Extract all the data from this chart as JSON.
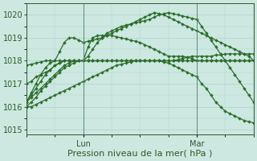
{
  "xlabel": "Pression niveau de la mer( hPa )",
  "bg_color": "#cce8e0",
  "grid_color": "#b0d0d0",
  "line_color": "#2d6e2d",
  "ylim": [
    1014.8,
    1020.5
  ],
  "yticks": [
    1015,
    1016,
    1017,
    1018,
    1019,
    1020
  ],
  "xlim": [
    0,
    48
  ],
  "xtick_positions": [
    12,
    36
  ],
  "xtick_labels": [
    "Lun",
    "Mar"
  ],
  "vlines": [
    12,
    36
  ],
  "marker_size": 2.0,
  "line_width": 0.9,
  "font_size_label": 8,
  "font_size_tick": 7,
  "series": [
    {
      "x": [
        0,
        1,
        2,
        3,
        4,
        5,
        6,
        7,
        8,
        9,
        10,
        11,
        12,
        13,
        14,
        15,
        16,
        17,
        18,
        19,
        20,
        21,
        22,
        23,
        24,
        25,
        26,
        27,
        28,
        29,
        30,
        31,
        32,
        33,
        34,
        35,
        36,
        37,
        38,
        39,
        40,
        41,
        42,
        43,
        44,
        45,
        46,
        47,
        48
      ],
      "y": [
        1016.2,
        1016.5,
        1016.8,
        1017.1,
        1017.4,
        1017.6,
        1017.8,
        1017.9,
        1018.0,
        1018.0,
        1018.0,
        1018.0,
        1018.0,
        1018.0,
        1018.0,
        1018.0,
        1018.0,
        1018.0,
        1018.0,
        1018.0,
        1018.0,
        1018.0,
        1018.0,
        1018.0,
        1018.0,
        1018.0,
        1018.0,
        1018.0,
        1018.0,
        1018.0,
        1018.0,
        1018.0,
        1018.0,
        1018.0,
        1018.0,
        1018.0,
        1018.0,
        1018.0,
        1018.0,
        1018.0,
        1018.0,
        1018.0,
        1018.0,
        1018.0,
        1018.0,
        1018.0,
        1018.0,
        1018.0,
        1018.0
      ]
    },
    {
      "x": [
        0,
        1,
        2,
        3,
        4,
        5,
        6,
        7,
        8,
        9,
        10,
        11,
        12,
        13,
        14,
        15,
        16,
        17,
        18,
        19,
        20,
        21,
        22,
        23,
        24,
        25,
        26,
        27,
        28,
        29,
        30,
        31,
        32,
        33,
        34,
        35,
        36,
        37,
        38,
        39,
        40,
        41,
        42,
        43,
        44,
        45,
        46,
        47,
        48
      ],
      "y": [
        1017.0,
        1017.1,
        1017.3,
        1017.4,
        1017.5,
        1017.6,
        1017.8,
        1017.9,
        1018.0,
        1018.0,
        1018.0,
        1018.0,
        1018.0,
        1018.0,
        1018.0,
        1018.0,
        1018.0,
        1018.0,
        1018.0,
        1018.0,
        1018.0,
        1018.0,
        1018.0,
        1018.0,
        1018.0,
        1018.0,
        1018.0,
        1018.0,
        1018.0,
        1018.0,
        1018.0,
        1018.0,
        1018.05,
        1018.1,
        1018.15,
        1018.2,
        1018.2,
        1018.2,
        1018.2,
        1018.2,
        1018.25,
        1018.25,
        1018.3,
        1018.3,
        1018.3,
        1018.3,
        1018.3,
        1018.3,
        1018.3
      ]
    },
    {
      "x": [
        0,
        1,
        2,
        3,
        4,
        5,
        6,
        7,
        8,
        9,
        10,
        11,
        12,
        13,
        14,
        15,
        16,
        17,
        18,
        19,
        20,
        21,
        22,
        23,
        24,
        25,
        26,
        27,
        28,
        29,
        30,
        31,
        32,
        33,
        34,
        35,
        36,
        37,
        38,
        39,
        40,
        41,
        42,
        43,
        44,
        45,
        46,
        47,
        48
      ],
      "y": [
        1017.8,
        1017.85,
        1017.9,
        1017.95,
        1018.0,
        1018.0,
        1018.0,
        1018.0,
        1018.0,
        1018.0,
        1018.0,
        1018.0,
        1018.0,
        1018.0,
        1018.0,
        1018.0,
        1018.0,
        1018.0,
        1018.0,
        1018.0,
        1018.0,
        1018.0,
        1018.0,
        1018.0,
        1018.0,
        1018.0,
        1018.0,
        1018.0,
        1018.0,
        1018.0,
        1018.0,
        1018.0,
        1018.0,
        1018.0,
        1018.0,
        1018.0,
        1018.0,
        1018.0,
        1018.0,
        1018.0,
        1018.0,
        1018.0,
        1018.0,
        1018.0,
        1018.0,
        1018.0,
        1018.0,
        1018.0,
        1018.0
      ]
    },
    {
      "x": [
        0,
        1,
        2,
        3,
        4,
        5,
        6,
        7,
        8,
        9,
        10,
        11,
        12,
        13,
        14,
        15,
        16,
        17,
        18,
        19,
        20,
        21,
        22,
        23,
        24,
        25,
        26,
        27,
        28,
        29,
        30,
        31,
        32,
        33,
        34,
        35,
        36,
        37,
        38,
        39,
        40,
        41,
        42,
        43,
        44,
        45,
        46,
        47,
        48
      ],
      "y": [
        1016.0,
        1016.2,
        1016.4,
        1016.7,
        1016.9,
        1017.1,
        1017.3,
        1017.5,
        1017.7,
        1017.8,
        1017.9,
        1018.0,
        1018.0,
        1018.6,
        1019.0,
        1019.1,
        1019.1,
        1019.1,
        1019.1,
        1019.05,
        1019.0,
        1018.95,
        1018.9,
        1018.85,
        1018.8,
        1018.7,
        1018.6,
        1018.5,
        1018.4,
        1018.3,
        1018.2,
        1018.2,
        1018.2,
        1018.2,
        1018.15,
        1018.1,
        1018.0,
        1018.0,
        1018.0,
        1018.0,
        1018.0,
        1018.0,
        1018.0,
        1018.0,
        1018.0,
        1018.0,
        1018.0,
        1018.0,
        1018.0
      ]
    },
    {
      "x": [
        0,
        1,
        2,
        3,
        4,
        5,
        6,
        7,
        8,
        9,
        10,
        11,
        12,
        13,
        14,
        15,
        16,
        17,
        18,
        19,
        20,
        21,
        22,
        23,
        24,
        25,
        26,
        27,
        28,
        29,
        30,
        31,
        32,
        33,
        34,
        35,
        36,
        37,
        38,
        39,
        40,
        41,
        42,
        43,
        44,
        45,
        46,
        47,
        48
      ],
      "y": [
        1016.2,
        1016.6,
        1017.0,
        1017.4,
        1017.7,
        1017.9,
        1018.0,
        1018.4,
        1018.8,
        1019.0,
        1019.0,
        1018.9,
        1018.8,
        1018.85,
        1018.9,
        1018.95,
        1019.0,
        1019.1,
        1019.2,
        1019.3,
        1019.4,
        1019.5,
        1019.6,
        1019.7,
        1019.8,
        1019.9,
        1020.0,
        1020.1,
        1020.05,
        1020.0,
        1019.9,
        1019.8,
        1019.7,
        1019.6,
        1019.5,
        1019.4,
        1019.3,
        1019.2,
        1019.1,
        1019.0,
        1018.9,
        1018.8,
        1018.7,
        1018.6,
        1018.5,
        1018.4,
        1018.3,
        1018.2,
        1018.0
      ]
    },
    {
      "x": [
        0,
        1,
        2,
        3,
        4,
        5,
        6,
        7,
        8,
        9,
        10,
        11,
        12,
        13,
        14,
        15,
        16,
        17,
        18,
        19,
        20,
        21,
        22,
        23,
        24,
        25,
        26,
        27,
        28,
        29,
        30,
        31,
        32,
        33,
        34,
        35,
        36,
        37,
        38,
        39,
        40,
        41,
        42,
        43,
        44,
        45,
        46,
        47,
        48
      ],
      "y": [
        1016.2,
        1016.4,
        1016.6,
        1016.8,
        1017.0,
        1017.2,
        1017.4,
        1017.6,
        1017.8,
        1017.9,
        1018.0,
        1018.0,
        1018.0,
        1018.2,
        1018.5,
        1018.8,
        1019.0,
        1019.2,
        1019.3,
        1019.4,
        1019.5,
        1019.55,
        1019.6,
        1019.65,
        1019.7,
        1019.75,
        1019.8,
        1019.9,
        1020.0,
        1020.05,
        1020.1,
        1020.05,
        1020.0,
        1019.95,
        1019.9,
        1019.85,
        1019.8,
        1019.5,
        1019.2,
        1018.9,
        1018.6,
        1018.3,
        1018.0,
        1017.7,
        1017.4,
        1017.1,
        1016.8,
        1016.5,
        1016.2
      ]
    },
    {
      "x": [
        0,
        1,
        2,
        3,
        4,
        5,
        6,
        7,
        8,
        9,
        10,
        11,
        12,
        13,
        14,
        15,
        16,
        17,
        18,
        19,
        20,
        21,
        22,
        23,
        24,
        25,
        26,
        27,
        28,
        29,
        30,
        31,
        32,
        33,
        34,
        35,
        36,
        37,
        38,
        39,
        40,
        41,
        42,
        43,
        44,
        45,
        46,
        47,
        48
      ],
      "y": [
        1016.0,
        1016.0,
        1016.1,
        1016.2,
        1016.3,
        1016.4,
        1016.5,
        1016.6,
        1016.7,
        1016.8,
        1016.9,
        1017.0,
        1017.1,
        1017.2,
        1017.3,
        1017.4,
        1017.5,
        1017.6,
        1017.7,
        1017.8,
        1017.85,
        1017.9,
        1017.95,
        1018.0,
        1018.0,
        1018.0,
        1018.0,
        1018.0,
        1018.0,
        1017.95,
        1017.9,
        1017.8,
        1017.7,
        1017.6,
        1017.5,
        1017.4,
        1017.3,
        1017.0,
        1016.8,
        1016.5,
        1016.2,
        1016.0,
        1015.8,
        1015.7,
        1015.6,
        1015.5,
        1015.4,
        1015.35,
        1015.3
      ]
    }
  ]
}
